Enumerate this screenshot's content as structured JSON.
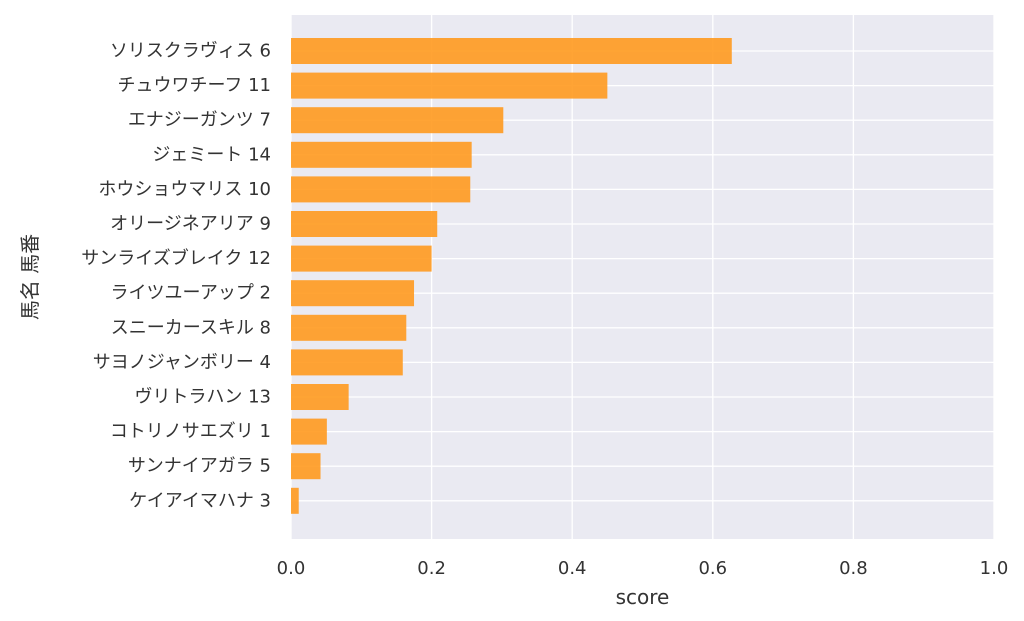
{
  "chart_data": {
    "type": "bar",
    "orientation": "horizontal",
    "title": "",
    "xlabel": "score",
    "ylabel": "馬名 馬番",
    "xlim": [
      0.0,
      1.0
    ],
    "xticks": [
      0.0,
      0.2,
      0.4,
      0.6,
      0.8,
      1.0
    ],
    "xtick_labels": [
      "0.0",
      "0.2",
      "0.4",
      "0.6",
      "0.8",
      "1.0"
    ],
    "grid": true,
    "categories": [
      "ソリスクラヴィス 6",
      "チュウワチーフ 11",
      "エナジーガンツ 7",
      "ジェミート 14",
      "ホウショウマリス 10",
      "オリージネアリア 9",
      "サンライズブレイク 12",
      "ライツユーアップ 2",
      "スニーカースキル 8",
      "サヨノジャンボリー 4",
      "ヴリトラハン 13",
      "コトリノサエズリ 1",
      "サンナイアガラ 5",
      "ケイアイマハナ 3"
    ],
    "values": [
      0.627,
      0.45,
      0.302,
      0.257,
      0.255,
      0.208,
      0.2,
      0.175,
      0.164,
      0.159,
      0.082,
      0.051,
      0.042,
      0.011
    ],
    "bar_color": "#ff9a1f",
    "plot_background": "#eaeaf2",
    "grid_color": "#ffffff"
  }
}
